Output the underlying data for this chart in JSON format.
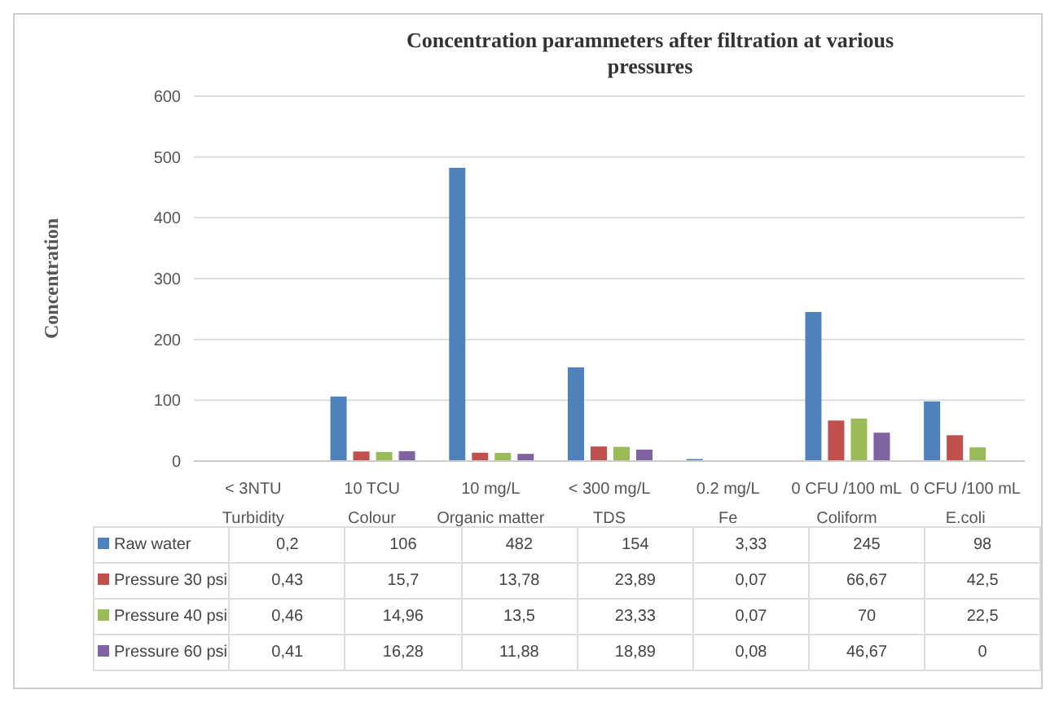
{
  "chart_data": {
    "type": "bar",
    "title": "Concentration parammeters after filtration at various pressures",
    "ylabel": "Concentration",
    "categories": [
      "< 3NTU\nTurbidity",
      "10 TCU\nColour",
      "10 mg/L\nOrganic matter",
      "< 300 mg/L\nTDS",
      "0.2 mg/L\nFe",
      "0 CFU /100 mL\nColiform",
      "0 CFU /100 mL\nE.coli"
    ],
    "series": [
      {
        "name": "Raw water",
        "color": "#4f81bd",
        "values": [
          0.2,
          106,
          482,
          154,
          3.33,
          245,
          98
        ],
        "value_labels": [
          "0,2",
          "106",
          "482",
          "154",
          "3,33",
          "245",
          "98"
        ]
      },
      {
        "name": "Pressure 30 psi",
        "color": "#c0504d",
        "values": [
          0.43,
          15.7,
          13.78,
          23.89,
          0.07,
          66.67,
          42.5
        ],
        "value_labels": [
          "0,43",
          "15,7",
          "13,78",
          "23,89",
          "0,07",
          "66,67",
          "42,5"
        ]
      },
      {
        "name": "Pressure 40 psi",
        "color": "#9bbb59",
        "values": [
          0.46,
          14.96,
          13.5,
          23.33,
          0.07,
          70,
          22.5
        ],
        "value_labels": [
          "0,46",
          "14,96",
          "13,5",
          "23,33",
          "0,07",
          "70",
          "22,5"
        ]
      },
      {
        "name": "Pressure 60 psi",
        "color": "#8064a2",
        "values": [
          0.41,
          16.28,
          11.88,
          18.89,
          0.08,
          46.67,
          0
        ],
        "value_labels": [
          "0,41",
          "16,28",
          "11,88",
          "18,89",
          "0,08",
          "46,67",
          "0"
        ]
      }
    ],
    "ylim": [
      0,
      600
    ],
    "yticks": [
      0,
      100,
      200,
      300,
      400,
      500,
      600
    ],
    "grid": "y",
    "legend": "bottom"
  }
}
